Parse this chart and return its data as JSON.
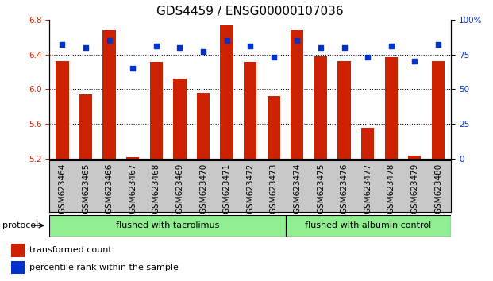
{
  "title": "GDS4459 / ENSG00000107036",
  "categories": [
    "GSM623464",
    "GSM623465",
    "GSM623466",
    "GSM623467",
    "GSM623468",
    "GSM623469",
    "GSM623470",
    "GSM623471",
    "GSM623472",
    "GSM623473",
    "GSM623474",
    "GSM623475",
    "GSM623476",
    "GSM623477",
    "GSM623478",
    "GSM623479",
    "GSM623480"
  ],
  "bar_values": [
    6.32,
    5.94,
    6.68,
    5.22,
    6.31,
    6.12,
    5.96,
    6.73,
    6.31,
    5.92,
    6.68,
    6.38,
    6.32,
    5.56,
    6.37,
    5.24,
    6.32
  ],
  "percentile_values": [
    82,
    80,
    85,
    65,
    81,
    80,
    77,
    85,
    81,
    73,
    85,
    80,
    80,
    73,
    81,
    70,
    82
  ],
  "ylim_left": [
    5.2,
    6.8
  ],
  "ylim_right": [
    0,
    100
  ],
  "yticks_left": [
    5.2,
    5.6,
    6.0,
    6.4,
    6.8
  ],
  "yticks_right": [
    0,
    25,
    50,
    75,
    100
  ],
  "grid_values": [
    5.6,
    6.0,
    6.4
  ],
  "bar_color": "#cc2200",
  "dot_color": "#0033cc",
  "protocol_group1_label": "flushed with tacrolimus",
  "protocol_group2_label": "flushed with albumin control",
  "protocol_split": 10,
  "legend_bar_label": "transformed count",
  "legend_dot_label": "percentile rank within the sample",
  "protocol_label": "protocol",
  "group_bg_color": "#90ee90",
  "xtick_bg_color": "#c8c8c8",
  "title_fontsize": 11,
  "tick_fontsize": 7.5,
  "axis_color_left": "#cc2200",
  "axis_color_right": "#0033cc"
}
